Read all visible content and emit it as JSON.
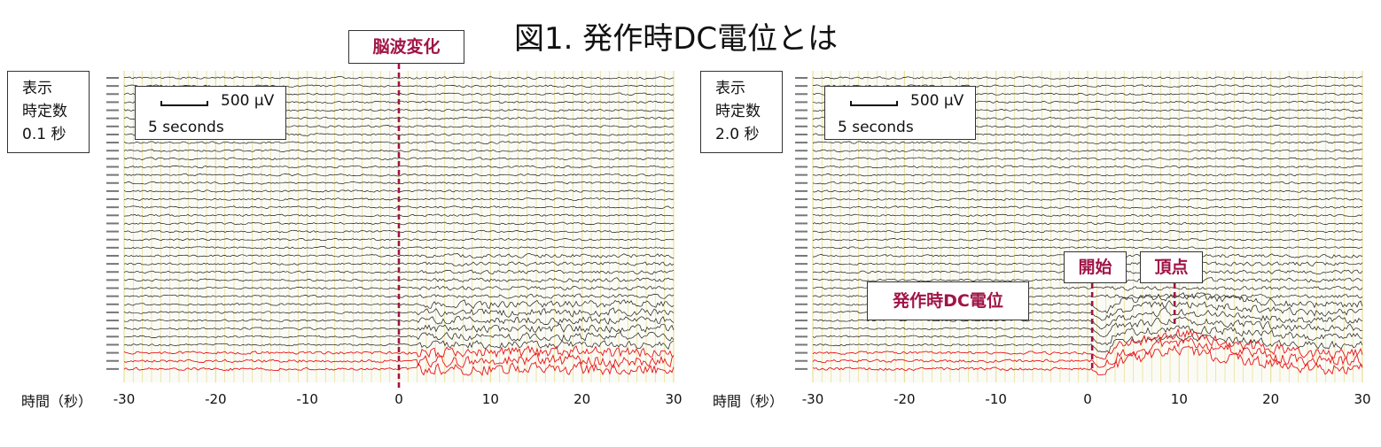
{
  "title": "図1. 発作時DC電位とは",
  "chart_data": [
    {
      "type": "line",
      "xlabel": "時間（秒）",
      "x_ticks": [
        -30,
        -20,
        -10,
        0,
        10,
        20,
        30
      ],
      "xlim": [
        -30,
        30
      ],
      "time_constant": {
        "line1": "表示",
        "line2": "時定数",
        "line3": "0.1 秒"
      },
      "scale_bar": {
        "amplitude": "500 μV",
        "duration": "5 seconds"
      },
      "annotations": [
        {
          "label": "脳波変化",
          "x": 0
        }
      ],
      "channels_black": 34,
      "channels_red": 3
    },
    {
      "type": "line",
      "xlabel": "時間（秒）",
      "x_ticks": [
        -30,
        -20,
        -10,
        0,
        10,
        20,
        30
      ],
      "xlim": [
        -30,
        30
      ],
      "time_constant": {
        "line1": "表示",
        "line2": "時定数",
        "line3": "2.0 秒"
      },
      "scale_bar": {
        "amplitude": "500 μV",
        "duration": "5 seconds"
      },
      "annotations": [
        {
          "label": "開始",
          "x": 0.5
        },
        {
          "label": "頂点",
          "x": 9.5
        },
        {
          "label": "発作時DC電位",
          "x": -17
        }
      ],
      "channels_black": 34,
      "channels_red": 3
    }
  ],
  "colors": {
    "trace": "#1a1a1a",
    "seizure_trace": "#e8141a",
    "grid": "#e9df9a",
    "annotation": "#a01446"
  }
}
